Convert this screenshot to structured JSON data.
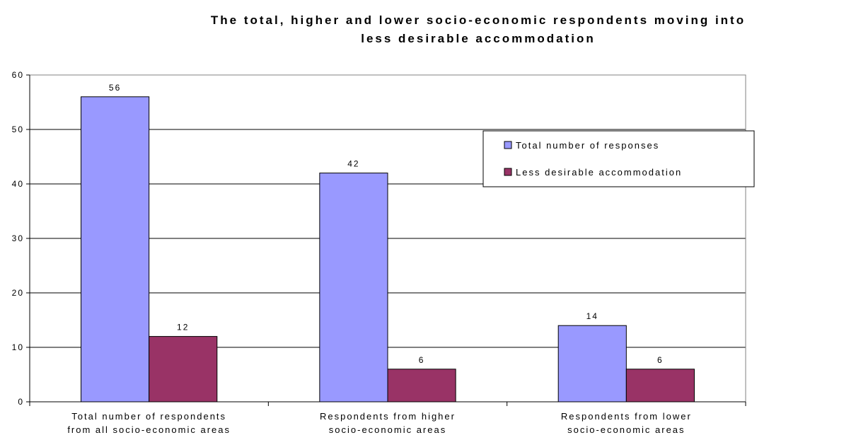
{
  "chart_data": {
    "type": "bar",
    "title": "The total, higher and lower socio-economic respondents moving into less desirable accommodation",
    "title_lines": [
      "The total, higher and lower socio-economic respondents moving into",
      "less desirable accommodation"
    ],
    "categories": [
      [
        "Total number of respondents",
        "from all socio-economic areas"
      ],
      [
        "Respondents from higher",
        "socio-economic areas"
      ],
      [
        "Respondents from lower",
        "socio-economic areas"
      ]
    ],
    "series": [
      {
        "name": "Total number of responses",
        "values": [
          56,
          42,
          14
        ],
        "color": "#9999FF"
      },
      {
        "name": "Less desirable accommodation",
        "values": [
          12,
          6,
          6
        ],
        "color": "#993366"
      }
    ],
    "ylim": [
      0,
      60
    ],
    "yticks": [
      0,
      10,
      20,
      30,
      40,
      50,
      60
    ],
    "grid": true,
    "legend_position": "right"
  }
}
